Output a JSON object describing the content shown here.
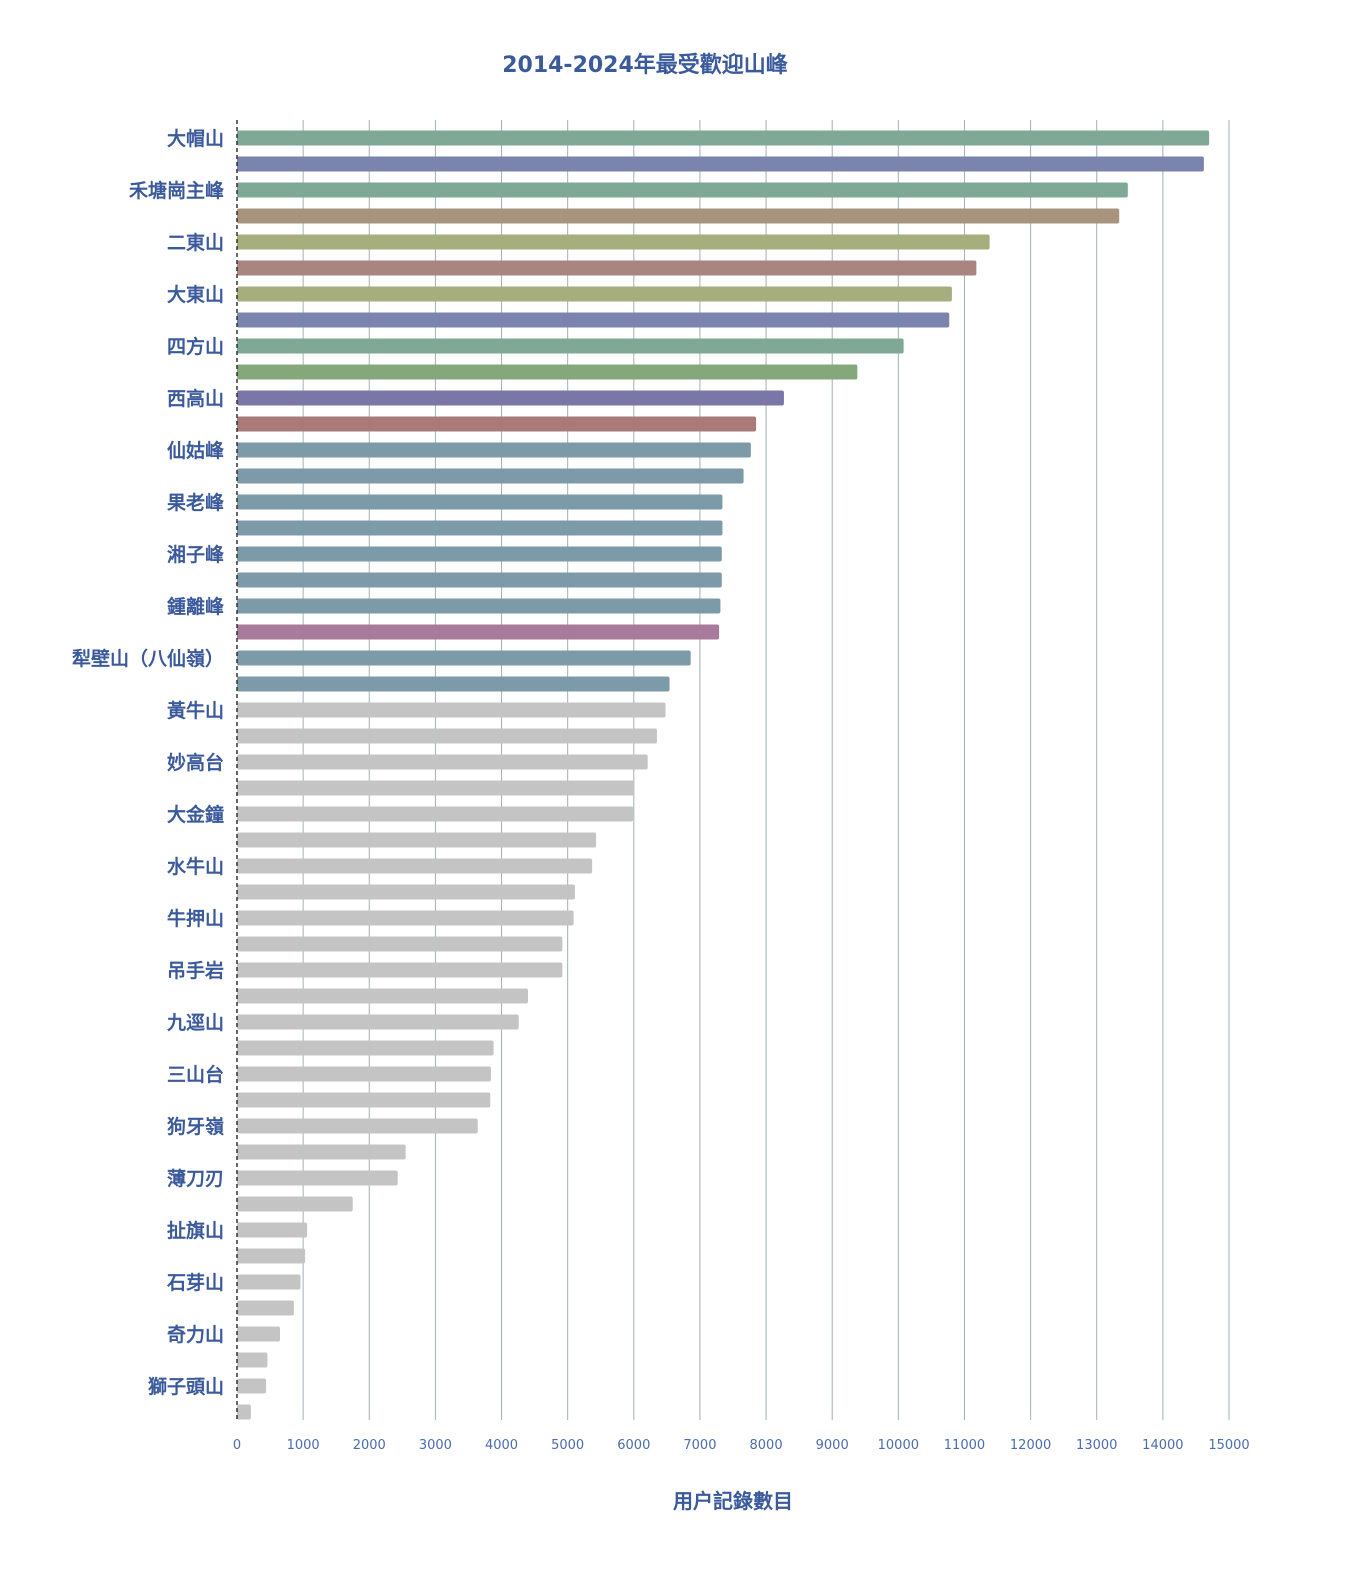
{
  "chart_data": {
    "type": "bar",
    "orientation": "horizontal",
    "title": "2014-2024年最受歡迎山峰",
    "xlabel": "用户記錄數目",
    "ylabel": "",
    "xlim": [
      0,
      15000
    ],
    "xticks": [
      0,
      1000,
      2000,
      3000,
      4000,
      5000,
      6000,
      7000,
      8000,
      9000,
      10000,
      11000,
      12000,
      13000,
      14000,
      15000
    ],
    "grid": true,
    "legend": "none",
    "categories": [
      "大帽山",
      "",
      "禾塘崗主峰",
      "",
      "二東山",
      "",
      "大東山",
      "",
      "四方山",
      "",
      "西高山",
      "",
      "仙姑峰",
      "",
      "果老峰",
      "",
      "湘子峰",
      "",
      "鍾離峰",
      "",
      "犁壁山（八仙嶺）",
      "",
      "黃牛山",
      "",
      "妙高台",
      "",
      "大金鐘",
      "",
      "水牛山",
      "",
      "牛押山",
      "",
      "吊手岩",
      "",
      "九逕山",
      "",
      "三山台",
      "",
      "狗牙嶺",
      "",
      "薄刀刃",
      "",
      "扯旗山",
      "",
      "石芽山",
      "",
      "奇力山",
      "",
      "獅子頭山",
      ""
    ],
    "values": [
      14700,
      14620,
      13470,
      13340,
      11380,
      11180,
      10810,
      10770,
      10080,
      9380,
      8270,
      7850,
      7770,
      7660,
      7340,
      7340,
      7330,
      7330,
      7310,
      7290,
      6860,
      6540,
      6480,
      6350,
      6210,
      6010,
      5990,
      5430,
      5370,
      5110,
      5090,
      4920,
      4920,
      4400,
      4260,
      3880,
      3840,
      3830,
      3640,
      2550,
      2430,
      1750,
      1060,
      1030,
      960,
      860,
      650,
      460,
      440,
      210
    ],
    "colors": [
      "#7fa996",
      "#7a84ac",
      "#7fa996",
      "#a8947c",
      "#a5ae7c",
      "#a88580",
      "#a5ae7c",
      "#7a84ac",
      "#7fa996",
      "#84a87c",
      "#7a76a8",
      "#a87a7a",
      "#7c9aa8",
      "#7c9aa8",
      "#7c9aa8",
      "#7c9aa8",
      "#7c9aa8",
      "#7c9aa8",
      "#7c9aa8",
      "#a87a9c",
      "#7c9aa8",
      "#7c9aa8",
      "#c4c4c4",
      "#c4c4c4",
      "#c4c4c4",
      "#c4c4c4",
      "#c4c4c4",
      "#c4c4c4",
      "#c4c4c4",
      "#c4c4c4",
      "#c4c4c4",
      "#c4c4c4",
      "#c4c4c4",
      "#c4c4c4",
      "#c4c4c4",
      "#c4c4c4",
      "#c4c4c4",
      "#c4c4c4",
      "#c4c4c4",
      "#c4c4c4",
      "#c4c4c4",
      "#c4c4c4",
      "#c4c4c4",
      "#c4c4c4",
      "#c4c4c4",
      "#c4c4c4",
      "#c4c4c4",
      "#c4c4c4",
      "#c4c4c4",
      "#c4c4c4"
    ],
    "style": {
      "title_color": "#3b5a9c",
      "label_color": "#3b5a9c",
      "tick_color": "#4a6cb0",
      "grid_color": "#9fb0b8"
    }
  }
}
